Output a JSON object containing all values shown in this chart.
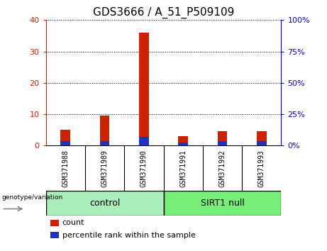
{
  "title": "GDS3666 / A_51_P509109",
  "categories": [
    "GSM371988",
    "GSM371989",
    "GSM371990",
    "GSM371991",
    "GSM371992",
    "GSM371993"
  ],
  "count_values": [
    5,
    9.5,
    36,
    3,
    4.5,
    4.5
  ],
  "percentile_values": [
    3.5,
    3.5,
    7,
    2.5,
    3.5,
    3.8
  ],
  "left_ylim": [
    0,
    40
  ],
  "right_ylim": [
    0,
    100
  ],
  "left_yticks": [
    0,
    10,
    20,
    30,
    40
  ],
  "right_yticks": [
    0,
    25,
    50,
    75,
    100
  ],
  "left_color": "#cc2200",
  "right_color": "#0000cc",
  "bar_color_red": "#cc2200",
  "bar_color_blue": "#2233bb",
  "control_label": "control",
  "sirt1_label": "SIRT1 null",
  "group_label": "genotype/variation",
  "legend_count": "count",
  "legend_percentile": "percentile rank within the sample",
  "tick_area_bg": "#c8c8c8",
  "group_bg_control": "#aaeebb",
  "group_bg_sirt1": "#77ee77",
  "n_control": 3,
  "n_sirt1": 3
}
